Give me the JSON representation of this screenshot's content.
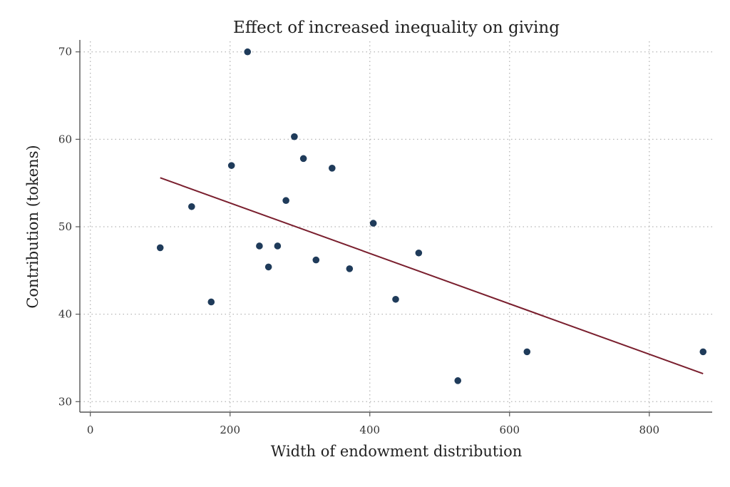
{
  "colors": {
    "points": "#1f3b5a",
    "fit_line": "#7a1f2e",
    "grid": "#b5b5b5",
    "axis": "#555555"
  },
  "chart_data": {
    "type": "scatter",
    "title": "Effect of increased inequality on giving",
    "xlabel": "Width of endowment distribution",
    "ylabel": "Contribution (tokens)",
    "xlim": [
      -15,
      890
    ],
    "ylim": [
      28.8,
      71.2
    ],
    "xticks": [
      0,
      200,
      400,
      600,
      800
    ],
    "yticks": [
      30,
      40,
      50,
      60,
      70
    ],
    "grid": true,
    "points": [
      {
        "x": 100,
        "y": 47.6
      },
      {
        "x": 145,
        "y": 52.3
      },
      {
        "x": 173,
        "y": 41.4
      },
      {
        "x": 202,
        "y": 57.0
      },
      {
        "x": 225,
        "y": 70.0
      },
      {
        "x": 242,
        "y": 47.8
      },
      {
        "x": 255,
        "y": 45.4
      },
      {
        "x": 268,
        "y": 47.8
      },
      {
        "x": 280,
        "y": 53.0
      },
      {
        "x": 292,
        "y": 60.3
      },
      {
        "x": 305,
        "y": 57.8
      },
      {
        "x": 323,
        "y": 46.2
      },
      {
        "x": 346,
        "y": 56.7
      },
      {
        "x": 371,
        "y": 45.2
      },
      {
        "x": 405,
        "y": 50.4
      },
      {
        "x": 437,
        "y": 41.7
      },
      {
        "x": 470,
        "y": 47.0
      },
      {
        "x": 526,
        "y": 32.4
      },
      {
        "x": 625,
        "y": 35.7
      },
      {
        "x": 877,
        "y": 35.7
      }
    ],
    "fit_line": [
      {
        "x": 100,
        "y": 55.6
      },
      {
        "x": 877,
        "y": 33.2
      }
    ]
  }
}
